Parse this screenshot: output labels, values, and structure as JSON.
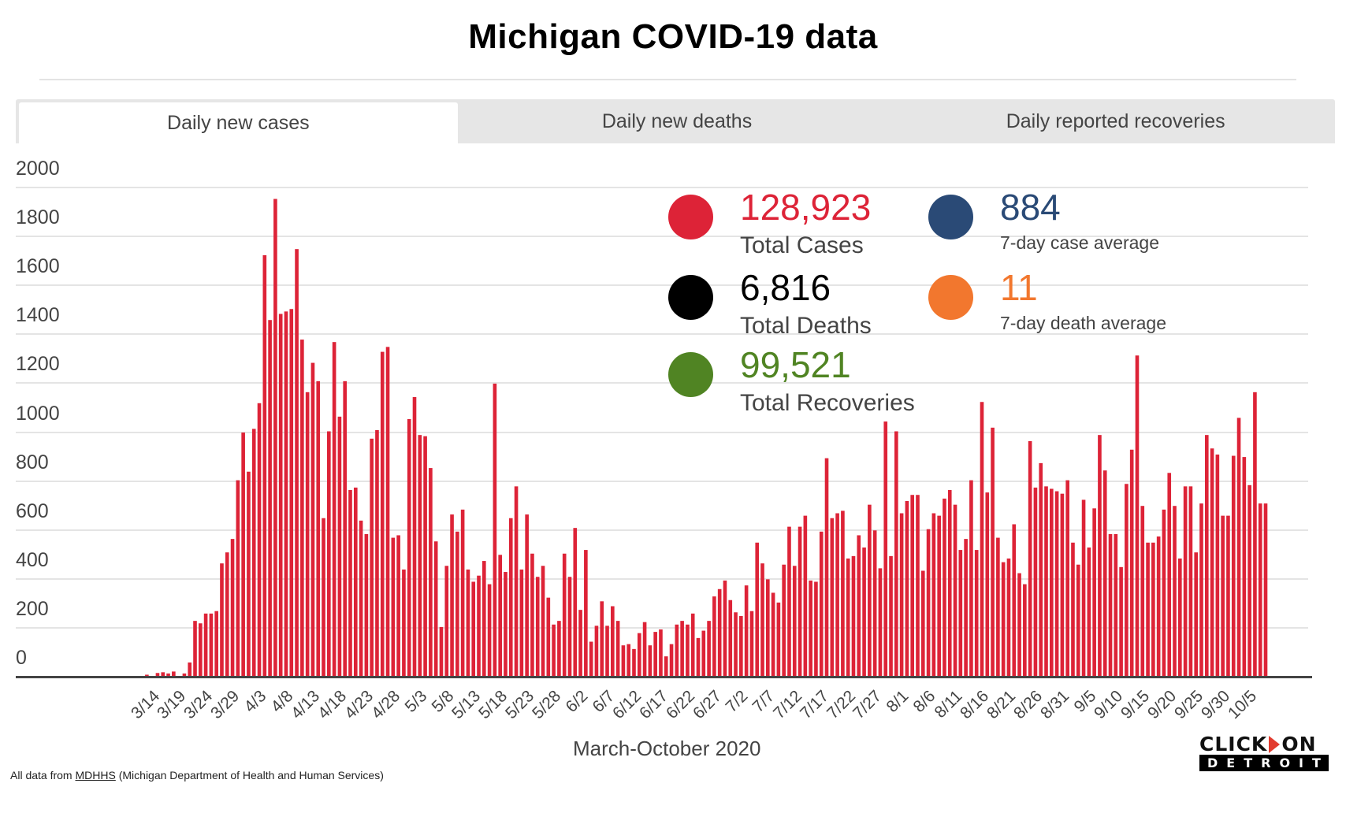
{
  "header": {
    "title": "Michigan COVID-19 data"
  },
  "tabs": [
    {
      "label": "Daily new cases",
      "active": true
    },
    {
      "label": "Daily new deaths",
      "active": false
    },
    {
      "label": "Daily reported recoveries",
      "active": false
    }
  ],
  "stats": {
    "total_cases": {
      "value": "128,923",
      "label": "Total Cases",
      "color": "#dd2337"
    },
    "total_deaths": {
      "value": "6,816",
      "label": "Total Deaths",
      "color": "#000000"
    },
    "total_recoveries": {
      "value": "99,521",
      "label": "Total Recoveries",
      "color": "#508423"
    },
    "case_avg": {
      "value": "884",
      "label": "7-day case average",
      "color": "#2a4a76"
    },
    "death_avg": {
      "value": "11",
      "label": "7-day death average",
      "color": "#f2772e"
    }
  },
  "footer": {
    "prefix": "All data from",
    "link": "MDHHS",
    "suffix": "(Michigan Department of Health and Human Services)"
  },
  "logo": {
    "top_left": "CLICK",
    "top_right": "ON",
    "bottom": "DETROIT"
  },
  "chart_data": {
    "type": "bar",
    "title": "Daily new cases",
    "xlabel": "March-October 2020",
    "ylabel": "",
    "ylim": [
      0,
      2000
    ],
    "yticks": [
      0,
      200,
      400,
      600,
      800,
      1000,
      1200,
      1400,
      1600,
      1800,
      2000
    ],
    "bar_color": "#dd2337",
    "grid": true,
    "start_date": "3/11",
    "xtick_labels": [
      "3/14",
      "3/19",
      "3/24",
      "3/29",
      "4/3",
      "4/8",
      "4/13",
      "4/18",
      "4/23",
      "4/28",
      "5/3",
      "5/8",
      "5/13",
      "5/18",
      "5/23",
      "5/28",
      "6/2",
      "6/7",
      "6/12",
      "6/17",
      "6/22",
      "6/27",
      "7/2",
      "7/7",
      "7/12",
      "7/17",
      "7/22",
      "7/27",
      "8/1",
      "8/6",
      "8/11",
      "8/16",
      "8/21",
      "8/26",
      "8/31",
      "9/5",
      "9/10",
      "9/15",
      "9/20",
      "9/25",
      "9/30",
      "10/5"
    ],
    "values": [
      0,
      0,
      0,
      5,
      0,
      12,
      15,
      10,
      18,
      0,
      10,
      55,
      225,
      215,
      255,
      255,
      265,
      460,
      505,
      560,
      800,
      995,
      835,
      1010,
      1115,
      1720,
      1455,
      1950,
      1480,
      1490,
      1500,
      1745,
      1375,
      1160,
      1280,
      1205,
      645,
      1000,
      1365,
      1060,
      1205,
      760,
      770,
      635,
      580,
      970,
      1005,
      1325,
      1345,
      565,
      575,
      435,
      1050,
      1140,
      985,
      980,
      850,
      550,
      200,
      450,
      660,
      590,
      680,
      435,
      385,
      410,
      470,
      375,
      1195,
      495,
      425,
      645,
      775,
      435,
      660,
      500,
      405,
      450,
      320,
      210,
      225,
      500,
      405,
      605,
      270,
      515,
      140,
      205,
      305,
      205,
      285,
      225,
      125,
      130,
      110,
      175,
      220,
      125,
      180,
      190,
      80,
      130,
      210,
      225,
      210,
      255,
      155,
      185,
      225,
      325,
      355,
      390,
      310,
      260,
      245,
      370,
      265,
      545,
      460,
      395,
      340,
      300,
      455,
      610,
      450,
      610,
      655,
      390,
      385,
      590,
      890,
      645,
      665,
      675,
      480,
      490,
      575,
      525,
      700,
      595,
      440,
      1040,
      490,
      1000,
      665,
      715,
      740,
      740,
      430,
      600,
      665,
      655,
      725,
      760,
      700,
      515,
      560,
      800,
      515,
      1120,
      750,
      1015,
      565,
      465,
      480,
      620,
      420,
      375,
      960,
      770,
      870,
      775,
      765,
      755,
      745,
      800,
      545,
      455,
      720,
      525,
      685,
      985,
      840,
      580,
      580,
      445,
      785,
      925,
      1310,
      695,
      545,
      545,
      570,
      680,
      830,
      695,
      480,
      775,
      775,
      505,
      705,
      985,
      930,
      905,
      655,
      655,
      900,
      1055,
      895,
      780,
      1160,
      705,
      705
    ]
  }
}
